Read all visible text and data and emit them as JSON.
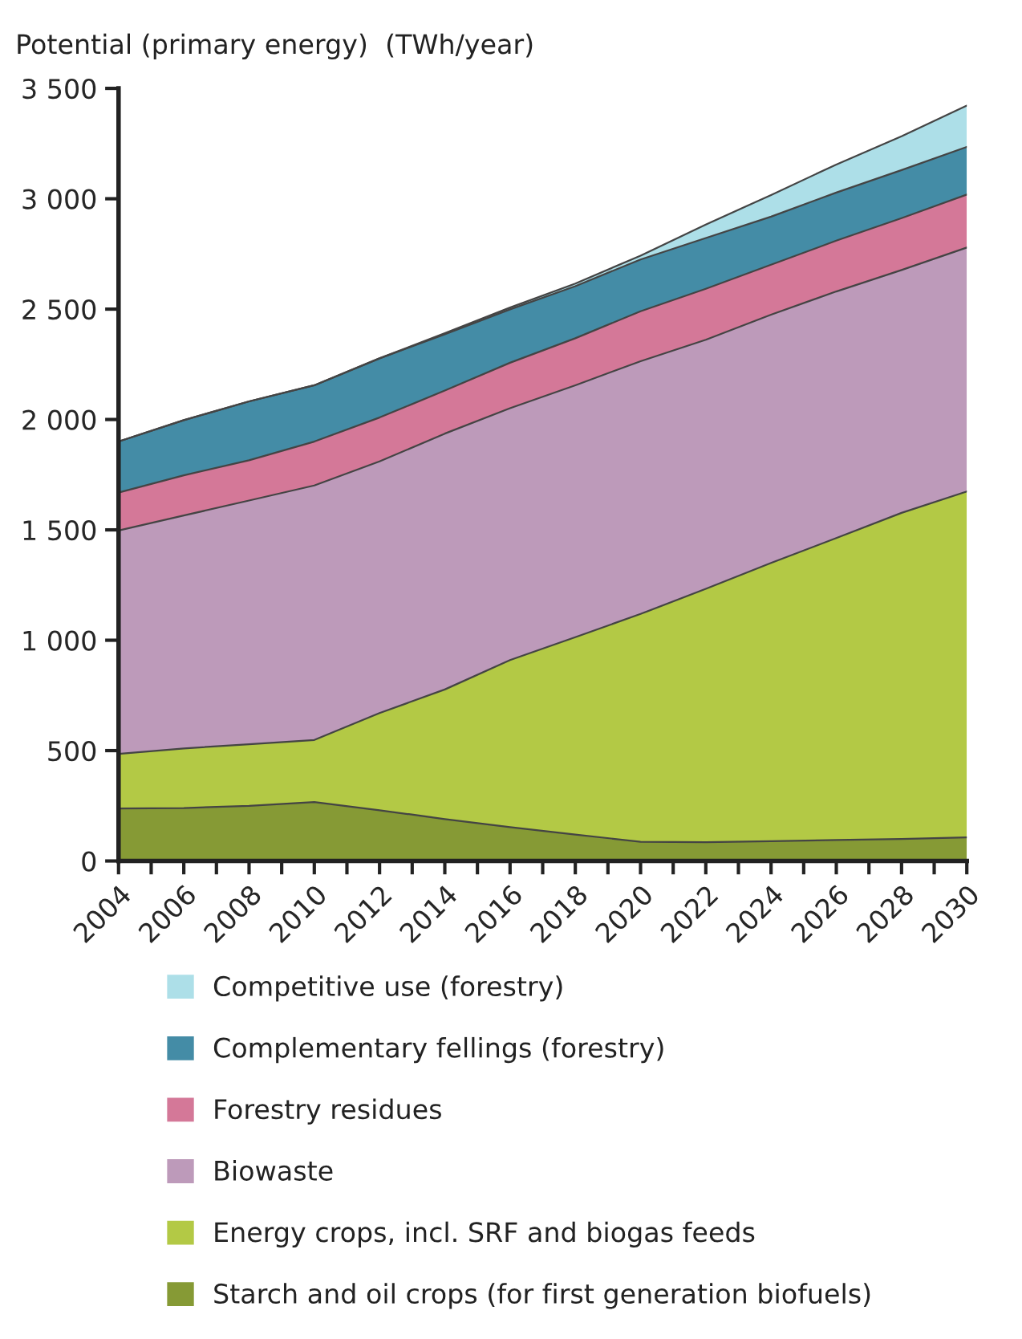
{
  "chart_data": {
    "type": "area",
    "stacked": true,
    "ylabel": "Potential (primary energy)  (TWh/year)",
    "x": [
      2004,
      2006,
      2008,
      2010,
      2012,
      2014,
      2016,
      2018,
      2020,
      2022,
      2024,
      2026,
      2028,
      2030
    ],
    "series": [
      {
        "name": "Starch and oil crops (for first generation biofuels)",
        "color": "#869a35",
        "values": [
          238,
          240,
          250,
          267,
          230,
          190,
          153,
          120,
          87,
          85,
          90,
          95,
          100,
          107
        ]
      },
      {
        "name": "Energy crops, incl. SRF and biogas feeds",
        "color": "#b3c945",
        "values": [
          247,
          270,
          279,
          281,
          440,
          587,
          757,
          894,
          1032,
          1148,
          1260,
          1368,
          1477,
          1567
        ]
      },
      {
        "name": "Biowaste",
        "color": "#bd9aba",
        "values": [
          1012,
          1055,
          1104,
          1153,
          1140,
          1159,
          1141,
          1141,
          1145,
          1128,
          1125,
          1117,
          1100,
          1105
        ]
      },
      {
        "name": "Forestry residues",
        "color": "#d47898",
        "values": [
          172,
          182,
          182,
          199,
          199,
          195,
          206,
          213,
          226,
          231,
          226,
          230,
          235,
          240
        ]
      },
      {
        "name": "Complementary fellings (forestry)",
        "color": "#448ca6",
        "values": [
          231,
          250,
          267,
          255,
          268,
          255,
          242,
          236,
          235,
          230,
          218,
          218,
          218,
          216
        ]
      },
      {
        "name": "Competitive use (forestry)",
        "color": "#addfe8",
        "values": [
          0,
          0,
          0,
          0,
          0,
          5,
          8,
          12,
          17,
          61,
          98,
          127,
          153,
          187
        ]
      }
    ],
    "xlim": [
      2004,
      2030
    ],
    "xticks": [
      2004,
      {
        "value": 2005,
        "label": null
      },
      2006,
      {
        "value": 2007,
        "label": null
      },
      2008,
      {
        "value": 2009,
        "label": null
      },
      2010,
      {
        "value": 2011,
        "label": null
      },
      2012,
      {
        "value": 2013,
        "label": null
      },
      2014,
      {
        "value": 2015,
        "label": null
      },
      2016,
      {
        "value": 2017,
        "label": null
      },
      2018,
      {
        "value": 2019,
        "label": null
      },
      2020,
      {
        "value": 2021,
        "label": null
      },
      2022,
      {
        "value": 2023,
        "label": null
      },
      2024,
      {
        "value": 2025,
        "label": null
      },
      2026,
      {
        "value": 2027,
        "label": null
      },
      2028,
      {
        "value": 2029,
        "label": null
      },
      2030
    ],
    "ylim": [
      0,
      3500
    ],
    "yticks": [
      0,
      500,
      {
        "value": 1000,
        "label": "1 000"
      },
      {
        "value": 1500,
        "label": "1 500"
      },
      {
        "value": 2000,
        "label": "2 000"
      },
      {
        "value": 2500,
        "label": "2 500"
      },
      {
        "value": 3000,
        "label": "3 000"
      },
      {
        "value": 3500,
        "label": "3 500"
      }
    ],
    "grid": false,
    "legend": "bottom"
  }
}
